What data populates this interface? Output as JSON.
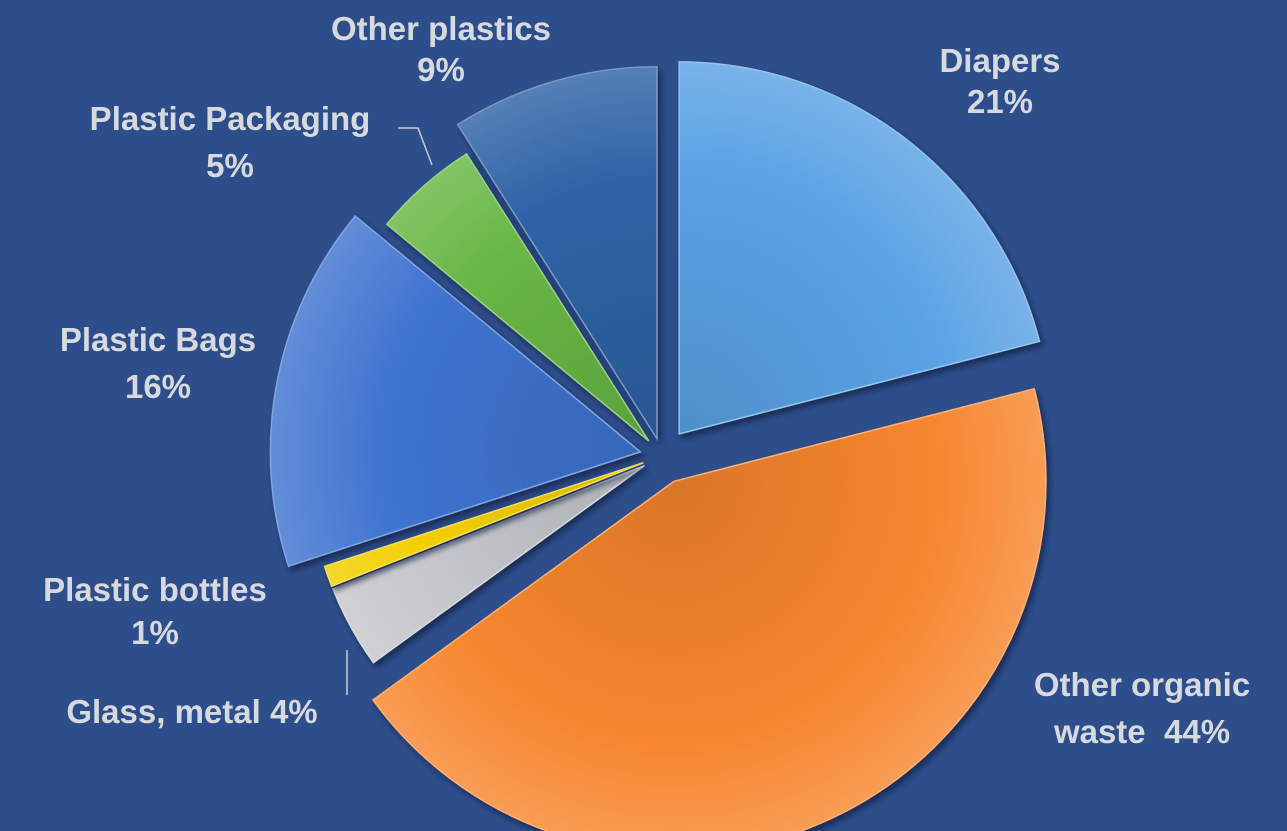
{
  "chart_data": {
    "type": "pie",
    "title": "",
    "legend": "none",
    "slices": [
      {
        "name": "Diapers",
        "label_line1": "Diapers",
        "label_line2": "21%",
        "value": 21,
        "color": "#5aa2e4"
      },
      {
        "name": "Other organic waste",
        "label_line1": "Other organic",
        "label_line2": "waste  44%",
        "value": 44,
        "color": "#f7862e"
      },
      {
        "name": "Glass, metal",
        "label_line1": "Glass, metal 4%",
        "label_line2": "",
        "value": 4,
        "color": "#c4c7cb"
      },
      {
        "name": "Plastic bottles",
        "label_line1": "Plastic bottles",
        "label_line2": "1%",
        "value": 1,
        "color": "#f3cf00"
      },
      {
        "name": "Plastic Bags",
        "label_line1": "Plastic Bags",
        "label_line2": "16%",
        "value": 16,
        "color": "#3f74d0"
      },
      {
        "name": "Plastic Packaging",
        "label_line1": "Plastic Packaging",
        "label_line2": "5%",
        "value": 5,
        "color": "#68b745"
      },
      {
        "name": "Other plastics",
        "label_line1": "Other plastics",
        "label_line2": "9%",
        "value": 9,
        "color": "#2f63a6"
      }
    ]
  }
}
